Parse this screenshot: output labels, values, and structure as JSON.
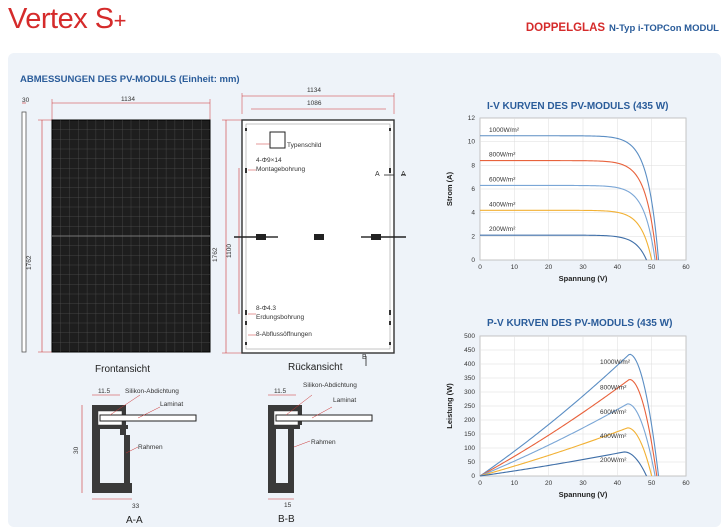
{
  "header": {
    "brand": "Vertex S",
    "brand_mark": "+",
    "product_type": "DOPPELGLAS",
    "product_sub": "N-Typ i-TOPCon MODUL",
    "brand_color": "#d52b2b",
    "accent_color": "#2a5c9a"
  },
  "dimensions": {
    "title": "ABMESSUNGEN DES PV-MODULS (Einheit: mm)",
    "front_caption": "Frontansicht",
    "back_caption": "Rückansicht",
    "thickness": "30",
    "width": "1134",
    "height": "1762",
    "inner_width": "1086",
    "hole_spacing": "1100",
    "nameplate": "Typenschild",
    "mount_holes": "4-Φ9×14",
    "mount_label": "Montagebohrung",
    "ground_holes": "8-Φ4.3",
    "ground_label": "Erdungsbohrung",
    "drain_holes": "8-Abflussöffnungen",
    "sec_aa": "A",
    "sec_bb": "B",
    "cross_aa": {
      "caption": "A-A",
      "silicone": "Silikon-Abdichtung",
      "laminate": "Laminat",
      "frame": "Rahmen",
      "top": "11.5",
      "height": "30",
      "bottom": "33"
    },
    "cross_bb": {
      "caption": "B-B",
      "silicone": "Silikon-Abdichtung",
      "laminate": "Laminat",
      "frame": "Rahmen",
      "top": "11.5",
      "bottom": "15"
    }
  },
  "chart_data": [
    {
      "type": "line",
      "title": "I-V KURVEN DES PV-MODULS (435 W)",
      "xlabel": "Spannung (V)",
      "ylabel": "Strom (A)",
      "xlim": [
        0,
        60
      ],
      "ylim": [
        0,
        12
      ],
      "xticks": [
        0,
        10,
        20,
        30,
        40,
        50,
        60
      ],
      "yticks": [
        0,
        2,
        4,
        6,
        8,
        10,
        12
      ],
      "grid": true,
      "series": [
        {
          "name": "1000W/m²",
          "color": "#5b8ec4",
          "isc": 10.5,
          "voc": 52.0
        },
        {
          "name": "800W/m²",
          "color": "#e8623c",
          "isc": 8.4,
          "voc": 51.5
        },
        {
          "name": "600W/m²",
          "color": "#7aa6d6",
          "isc": 6.3,
          "voc": 51.0
        },
        {
          "name": "400W/m²",
          "color": "#f2b134",
          "isc": 4.2,
          "voc": 50.0
        },
        {
          "name": "200W/m²",
          "color": "#3f6fa8",
          "isc": 2.1,
          "voc": 48.5
        }
      ]
    },
    {
      "type": "line",
      "title": "P-V KURVEN DES PV-MODULS (435 W)",
      "xlabel": "Spannung (V)",
      "ylabel": "Leistung (W)",
      "xlim": [
        0,
        60
      ],
      "ylim": [
        0,
        500
      ],
      "xticks": [
        0,
        10,
        20,
        30,
        40,
        50,
        60
      ],
      "yticks": [
        0,
        50,
        100,
        150,
        200,
        250,
        300,
        350,
        400,
        450,
        500
      ],
      "grid": true,
      "series": [
        {
          "name": "1000W/m²",
          "color": "#5b8ec4",
          "pmax": 435,
          "vmp": 43.5,
          "voc": 52.0
        },
        {
          "name": "800W/m²",
          "color": "#e8623c",
          "pmax": 345,
          "vmp": 43.5,
          "voc": 51.5
        },
        {
          "name": "600W/m²",
          "color": "#7aa6d6",
          "pmax": 258,
          "vmp": 43.0,
          "voc": 51.0
        },
        {
          "name": "400W/m²",
          "color": "#f2b134",
          "pmax": 172,
          "vmp": 43.0,
          "voc": 50.0
        },
        {
          "name": "200W/m²",
          "color": "#3f6fa8",
          "pmax": 86,
          "vmp": 42.0,
          "voc": 48.5
        }
      ]
    }
  ]
}
